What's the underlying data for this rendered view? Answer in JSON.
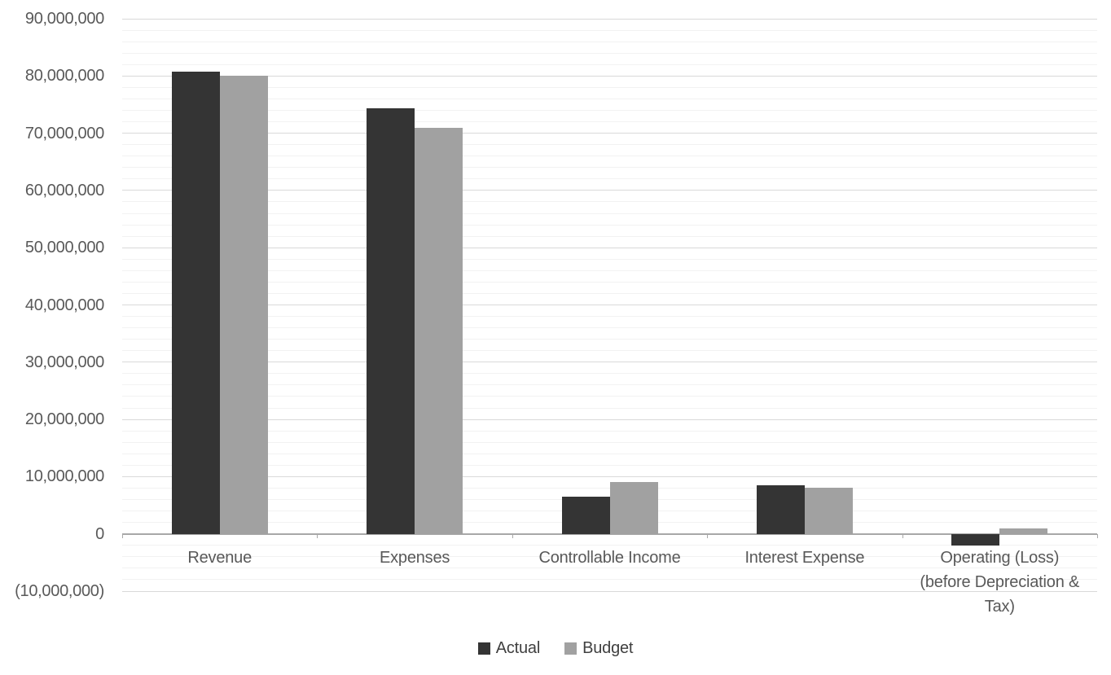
{
  "chart_data": {
    "type": "bar",
    "title": "",
    "xlabel": "",
    "ylabel": "",
    "categories": [
      "Revenue",
      "Expenses",
      "Controllable Income",
      "Interest Expense",
      "Operating (Loss)\n(before Depreciation &\nTax)"
    ],
    "series": [
      {
        "name": "Actual",
        "color": "#343434",
        "values": [
          80800000,
          74300000,
          6500000,
          8500000,
          -2000000
        ]
      },
      {
        "name": "Budget",
        "color": "#a1a1a1",
        "values": [
          80000000,
          71000000,
          9000000,
          8000000,
          1000000
        ]
      }
    ],
    "y_axis": {
      "min": -10000000,
      "max": 90000000,
      "major_unit": 10000000,
      "minor_unit": 2000000,
      "tick_labels": [
        "90,000,000",
        "80,000,000",
        "70,000,000",
        "60,000,000",
        "50,000,000",
        "40,000,000",
        "30,000,000",
        "20,000,000",
        "10,000,000",
        "0",
        "(10,000,000)"
      ]
    },
    "legend": {
      "position": "bottom",
      "entries": [
        "Actual",
        "Budget"
      ]
    },
    "grid": {
      "major": true,
      "minor": true
    },
    "colors": {
      "background": "#ffffff",
      "actual_bar": "#343434",
      "budget_bar": "#a1a1a1",
      "gridline_major": "#d9d9d9",
      "gridline_minor": "#f2f2f2",
      "axis_line": "#a8a8a8",
      "axis_label_text": "#595959",
      "legend_text": "#404040"
    }
  }
}
